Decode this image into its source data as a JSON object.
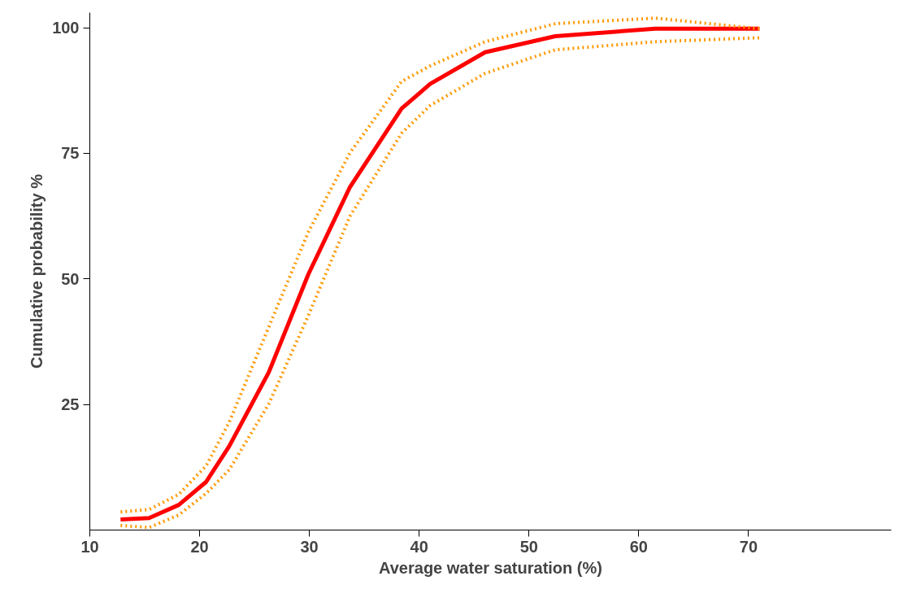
{
  "chart_data": {
    "type": "line",
    "xlabel": "Average water saturation (%)",
    "ylabel": "Cumulative probability %",
    "x": [
      12.8,
      15.4,
      18.1,
      20.6,
      22.7,
      26.3,
      29.9,
      33.7,
      38.4,
      41.0,
      46.0,
      52.4,
      61.5,
      71.0
    ],
    "series": [
      {
        "color": "#ff0000",
        "line_style": "solid",
        "values": [
          2.1,
          2.4,
          5.0,
          9.6,
          16.7,
          31.4,
          50.9,
          68.3,
          83.9,
          88.8,
          95.1,
          98.3,
          99.8,
          99.8
        ]
      },
      {
        "color": "#ff9900",
        "line_style": "dotted",
        "values": [
          3.6,
          4.1,
          7.1,
          12.8,
          21.5,
          40.4,
          59.3,
          75.1,
          89.3,
          92.4,
          97.2,
          100.8,
          101.9,
          99.8
        ]
      },
      {
        "color": "#ff9900",
        "line_style": "dotted",
        "values": [
          0.9,
          0.5,
          3.0,
          7.3,
          12.0,
          25.1,
          42.7,
          62.5,
          79.0,
          84.5,
          90.9,
          95.6,
          97.2,
          98.0
        ]
      }
    ],
    "xlim": [
      10,
      83
    ],
    "ylim": [
      0,
      103
    ],
    "xticks": [
      10,
      20,
      30,
      40,
      50,
      60,
      70
    ],
    "yticks": [
      25,
      50,
      75,
      100
    ],
    "grid": false,
    "marker": "none"
  }
}
